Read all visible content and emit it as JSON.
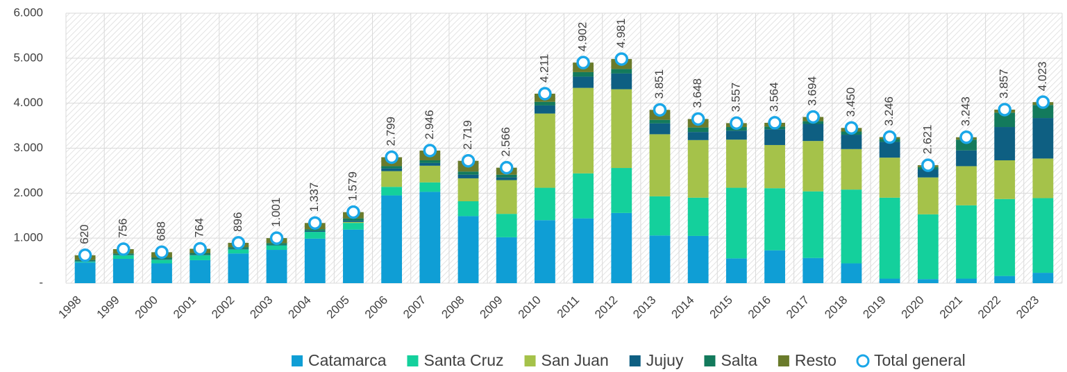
{
  "chart_data": {
    "type": "bar",
    "stacked": true,
    "categories": [
      "1998",
      "1999",
      "2000",
      "2001",
      "2002",
      "2003",
      "2004",
      "2005",
      "2006",
      "2007",
      "2008",
      "2009",
      "2010",
      "2011",
      "2012",
      "2013",
      "2014",
      "2015",
      "2016",
      "2017",
      "2018",
      "2019",
      "2020",
      "2021",
      "2022",
      "2023"
    ],
    "series": [
      {
        "name": "Catamarca",
        "color": "#0f9ed5",
        "values": [
          460,
          540,
          440,
          510,
          660,
          740,
          990,
          1190,
          1950,
          2030,
          1490,
          1020,
          1400,
          1440,
          1560,
          1060,
          1050,
          550,
          730,
          560,
          440,
          100,
          90,
          100,
          160,
          230
        ]
      },
      {
        "name": "Santa Cruz",
        "color": "#14d09c",
        "values": [
          20,
          80,
          80,
          110,
          90,
          100,
          150,
          150,
          190,
          210,
          330,
          520,
          720,
          1000,
          1000,
          870,
          850,
          1570,
          1380,
          1480,
          1640,
          1800,
          1440,
          1630,
          1710,
          1660
        ]
      },
      {
        "name": "San Juan",
        "color": "#a5c24a",
        "values": [
          0,
          0,
          0,
          0,
          0,
          0,
          0,
          20,
          350,
          370,
          510,
          750,
          1650,
          1900,
          1750,
          1380,
          1280,
          1070,
          960,
          1120,
          900,
          890,
          820,
          870,
          860,
          880
        ]
      },
      {
        "name": "Jujuy",
        "color": "#0e5f82",
        "values": [
          10,
          10,
          10,
          10,
          10,
          10,
          20,
          30,
          60,
          60,
          80,
          60,
          180,
          250,
          350,
          240,
          180,
          200,
          350,
          380,
          320,
          350,
          180,
          350,
          740,
          900
        ]
      },
      {
        "name": "Salta",
        "color": "#137a5c",
        "values": [
          30,
          30,
          40,
          40,
          40,
          40,
          40,
          50,
          50,
          60,
          70,
          60,
          80,
          100,
          100,
          80,
          100,
          80,
          60,
          60,
          70,
          60,
          50,
          240,
          320,
          290
        ]
      },
      {
        "name": "Resto",
        "color": "#6a7b2b",
        "values": [
          100,
          96,
          118,
          94,
          96,
          111,
          137,
          139,
          199,
          216,
          239,
          156,
          181,
          212,
          221,
          221,
          188,
          87,
          84,
          94,
          80,
          46,
          41,
          53,
          67,
          63
        ]
      }
    ],
    "total": {
      "name": "Total general",
      "color": "#1aa7e8",
      "values": [
        620,
        756,
        688,
        764,
        896,
        1001,
        1337,
        1579,
        2799,
        2946,
        2719,
        2566,
        4211,
        4902,
        4981,
        3851,
        3648,
        3557,
        3564,
        3694,
        3450,
        3246,
        2621,
        3243,
        3857,
        4023
      ],
      "value_labels": [
        "620",
        "756",
        "688",
        "764",
        "896",
        "1.001",
        "1.337",
        "1.579",
        "2.799",
        "2.946",
        "2.719",
        "2.566",
        "4.211",
        "4.902",
        "4.981",
        "3.851",
        "3.648",
        "3.557",
        "3.564",
        "3.694",
        "3.450",
        "3.246",
        "2.621",
        "3.243",
        "3.857",
        "4.023"
      ]
    },
    "ylim": [
      0,
      6000
    ],
    "yticks": [
      {
        "value": 0,
        "label": "-"
      },
      {
        "value": 1000,
        "label": "1.000"
      },
      {
        "value": 2000,
        "label": "2.000"
      },
      {
        "value": 3000,
        "label": "3.000"
      },
      {
        "value": 4000,
        "label": "4.000"
      },
      {
        "value": 5000,
        "label": "5.000"
      },
      {
        "value": 6000,
        "label": "6.000"
      }
    ],
    "grid": true,
    "legend": "bottom"
  }
}
